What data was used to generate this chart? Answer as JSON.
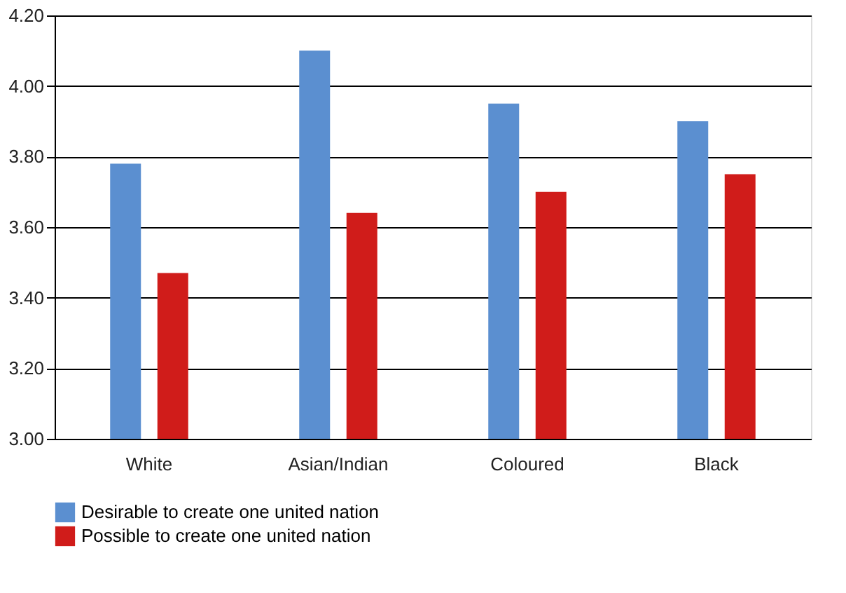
{
  "chart_data": {
    "type": "bar",
    "categories": [
      "White",
      "Asian/Indian",
      "Coloured",
      "Black"
    ],
    "series": [
      {
        "name": "Desirable to create one united nation",
        "color": "#5b8fd0",
        "values": [
          3.78,
          4.1,
          3.95,
          3.9
        ]
      },
      {
        "name": "Possible to create one united nation",
        "color": "#d01c1a",
        "values": [
          3.47,
          3.64,
          3.7,
          3.75
        ]
      }
    ],
    "ylim": [
      3.0,
      4.2
    ],
    "yticks": [
      {
        "value": 3.0,
        "label": "3.00"
      },
      {
        "value": 3.2,
        "label": "3.20"
      },
      {
        "value": 3.4,
        "label": "3.40"
      },
      {
        "value": 3.6,
        "label": "3.60"
      },
      {
        "value": 3.8,
        "label": "3.80"
      },
      {
        "value": 4.0,
        "label": "4.00"
      },
      {
        "value": 4.2,
        "label": "4.20"
      }
    ],
    "grid": "y",
    "legend": "bottom"
  }
}
